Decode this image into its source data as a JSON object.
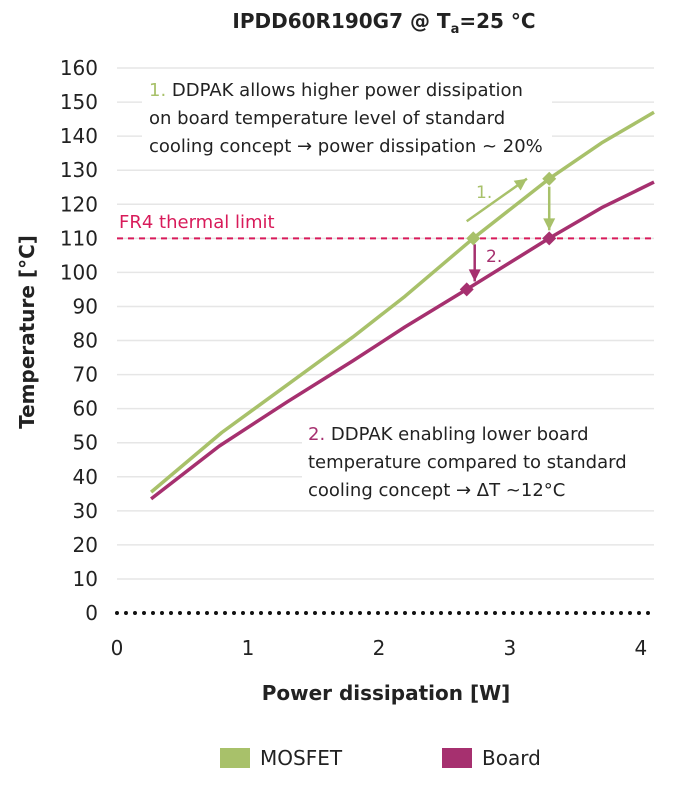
{
  "chart_data": {
    "type": "line",
    "title_main": "IPDD60R190G7 @  T",
    "title_sub": "a",
    "title_tail": "=25 °C",
    "xlabel": "Power dissipation [W]",
    "ylabel": "Temperature [°C]",
    "xlim": [
      0,
      4.1
    ],
    "ylim": [
      0,
      160
    ],
    "x_ticks": [
      "0",
      "1",
      "2",
      "3",
      "4"
    ],
    "y_ticks": [
      "0",
      "10",
      "20",
      "30",
      "40",
      "50",
      "60",
      "70",
      "80",
      "90",
      "100",
      "110",
      "120",
      "130",
      "140",
      "150",
      "160"
    ],
    "grid": true,
    "legend_position": "bottom",
    "colors": {
      "mosfet": "#a8c16a",
      "board": "#a6306f",
      "limit": "#d81b5a",
      "grid": "#e6e6e6",
      "text": "#222222"
    },
    "series": [
      {
        "name": "MOSFET",
        "x": [
          0.26,
          0.8,
          1.3,
          1.8,
          2.2,
          2.72,
          3.3,
          3.7,
          4.1
        ],
        "y": [
          35.5,
          53,
          67,
          81,
          93,
          110,
          127.5,
          138,
          147
        ]
      },
      {
        "name": "Board",
        "x": [
          0.26,
          0.78,
          1.3,
          1.8,
          2.2,
          2.67,
          3.3,
          3.7,
          4.1
        ],
        "y": [
          33.5,
          49,
          62,
          74,
          84,
          95,
          110,
          119,
          126.5
        ]
      }
    ],
    "threshold": {
      "label": "FR4 thermal limit",
      "y": 110
    },
    "markers": [
      {
        "series": "MOSFET",
        "x": 2.72,
        "y": 110
      },
      {
        "series": "MOSFET",
        "x": 3.3,
        "y": 127.5
      },
      {
        "series": "Board",
        "x": 2.67,
        "y": 95
      },
      {
        "series": "Board",
        "x": 3.3,
        "y": 110
      }
    ],
    "annotations": {
      "note1": {
        "number": "1.",
        "lines": [
          " DDPAK allows higher power dissipation",
          "on board temperature level of standard",
          "cooling concept → power dissipation ~ 20%"
        ]
      },
      "note2": {
        "number": "2.",
        "lines": [
          " DDPAK enabling lower board",
          "temperature compared to standard",
          "cooling concept → ΔT ~12°C"
        ]
      },
      "arrow1_label": "1.",
      "arrow2_label": "2."
    },
    "legend": [
      "MOSFET",
      "Board"
    ]
  }
}
